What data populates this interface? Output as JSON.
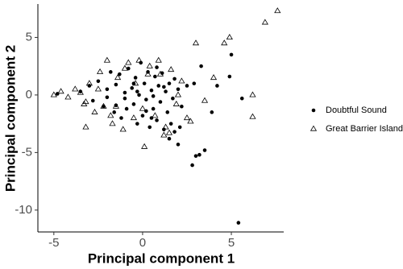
{
  "chart_data": {
    "type": "scatter",
    "x_label": "Principal component 1",
    "y_label": "Principal component 2",
    "xlim": [
      -5.9,
      7.95
    ],
    "ylim": [
      -11.9,
      7.9
    ],
    "xticks": [
      -5,
      0,
      5
    ],
    "yticks": [
      -10,
      -5,
      0,
      5
    ],
    "grid": false,
    "legend": "right",
    "series": [
      {
        "name": "Doubtful Sound",
        "marker": "circle",
        "color": "#000000",
        "x": [
          -3.5,
          -3.0,
          -2.8,
          -2.5,
          -2.2,
          -2.0,
          -1.8,
          -1.6,
          -1.5,
          -1.3,
          -1.2,
          -1.0,
          -0.9,
          -0.8,
          -0.6,
          -0.5,
          -0.4,
          -0.3,
          -0.2,
          -0.1,
          0,
          0.1,
          0.2,
          0.3,
          0.4,
          0.5,
          0.6,
          0.7,
          0.8,
          0.9,
          1.0,
          1.1,
          1.2,
          1.3,
          1.4,
          1.5,
          1.6,
          1.7,
          1.8,
          2.0,
          2.2,
          2.5,
          -1.0,
          -0.5,
          0.2,
          0.8,
          1.2,
          -2.0,
          -1.5,
          0.5,
          1.5,
          1.8,
          2.1,
          -0.3,
          0.6,
          5.4,
          2.8,
          3.0,
          3.2,
          3.5,
          2.0,
          5.0,
          3.3,
          4.9,
          5.6,
          3.9,
          -4.8,
          2.9,
          4.2
        ],
        "y": [
          0.3,
          0.8,
          -0.5,
          1.2,
          -1.0,
          0.5,
          2.0,
          -1.5,
          0.9,
          1.8,
          -2.0,
          0.2,
          -1.2,
          2.3,
          0.6,
          -0.8,
          1.5,
          -2.5,
          0.0,
          2.8,
          -1.8,
          1.0,
          -0.4,
          2.0,
          -2.8,
          0.4,
          -1.2,
          1.6,
          -2.2,
          0.8,
          -0.6,
          1.9,
          -3.0,
          0.3,
          -1.5,
          1.0,
          -2.5,
          -0.3,
          -3.2,
          0.5,
          -1.0,
          0.8,
          -0.3,
          1.0,
          -1.4,
          2.4,
          0.7,
          -0.2,
          -0.9,
          -2.0,
          -3.8,
          1.4,
          -2.8,
          0.3,
          -0.1,
          -11.1,
          -6.1,
          -5.3,
          -5.2,
          -4.8,
          -4.3,
          3.5,
          2.5,
          1.6,
          -0.3,
          -1.5,
          0.1,
          1.0,
          0.8
        ]
      },
      {
        "name": "Great Barrier Island",
        "marker": "triangle",
        "color": "#000000",
        "x": [
          -5.0,
          -4.6,
          -4.2,
          -3.8,
          -3.5,
          -3.2,
          -3.0,
          -2.7,
          -2.4,
          -2.2,
          -2.0,
          -1.7,
          -1.4,
          -1.1,
          -0.8,
          -0.5,
          -0.2,
          0.1,
          0.4,
          0.7,
          1.0,
          1.3,
          1.6,
          1.9,
          2.2,
          2.5,
          -2.5,
          -1.0,
          0.0,
          1.2,
          -1.8,
          -0.4,
          0.9,
          2.0,
          -3.3,
          -1.5,
          0.3,
          1.5,
          7.6,
          6.9,
          4.9,
          4.6,
          3.0,
          6.2,
          6.2,
          4.0,
          3.5,
          2.7,
          -3.2
        ],
        "y": [
          0.0,
          0.3,
          -0.2,
          0.5,
          0.2,
          -0.6,
          1.0,
          -1.5,
          2.0,
          -1.0,
          3.0,
          -2.5,
          1.5,
          -3.0,
          2.8,
          -2.0,
          3.0,
          -4.5,
          2.5,
          -1.8,
          1.8,
          -2.8,
          2.2,
          -0.8,
          1.2,
          -2.0,
          0.5,
          2.3,
          -1.2,
          -3.5,
          -1.8,
          1.0,
          3.0,
          0.0,
          -0.8,
          -1.0,
          1.8,
          -3.3,
          7.3,
          6.3,
          5.0,
          4.5,
          4.5,
          0.0,
          -1.9,
          1.5,
          -0.5,
          -2.3,
          -2.8
        ]
      }
    ]
  }
}
